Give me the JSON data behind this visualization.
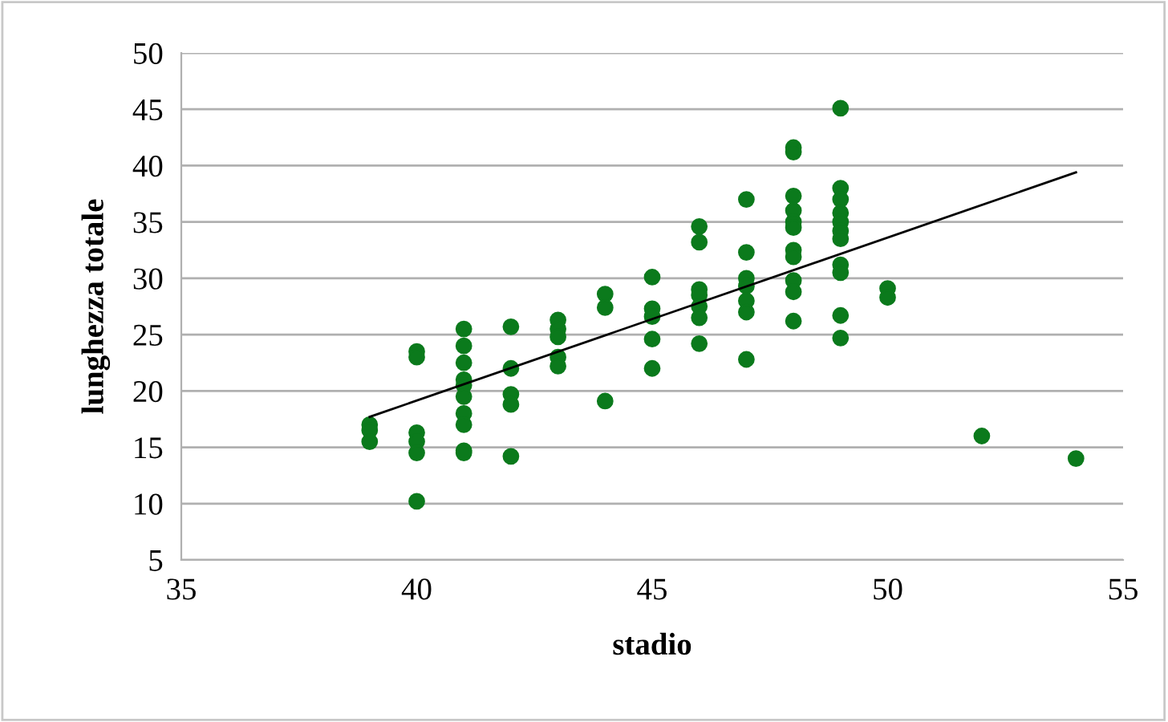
{
  "chart_data": {
    "type": "scatter",
    "xlabel": "stadio",
    "ylabel": "lunghezza totale",
    "xlim": [
      35,
      55
    ],
    "xticks": [
      35,
      40,
      45,
      50,
      55
    ],
    "ylim": [
      5,
      50
    ],
    "yticks": [
      5,
      10,
      15,
      20,
      25,
      30,
      35,
      40,
      45,
      50
    ],
    "grid": "y",
    "legend": false,
    "series": [
      {
        "color": "#0b7a1c",
        "marker": "circle",
        "x": [
          39,
          39,
          39,
          40,
          40,
          40,
          40,
          40,
          40,
          41,
          41,
          41,
          41,
          41,
          41,
          41,
          41,
          41,
          41,
          42,
          42,
          42,
          42,
          42,
          43,
          43,
          43,
          43,
          43,
          44,
          44,
          44,
          45,
          45,
          45,
          45,
          45,
          46,
          46,
          46,
          46,
          46,
          46,
          46,
          47,
          47,
          47,
          47,
          47,
          47,
          47,
          48,
          48,
          48,
          48,
          48,
          48,
          48,
          48,
          48,
          48,
          48,
          49,
          49,
          49,
          49,
          49,
          49,
          49,
          49,
          49,
          49,
          49,
          50,
          50,
          52,
          54
        ],
        "values": [
          17,
          16.5,
          15.5,
          23.5,
          23,
          16.3,
          15.5,
          14.5,
          10.2,
          25.5,
          24,
          22.5,
          21,
          20.5,
          19.5,
          18,
          17,
          14.7,
          14.5,
          25.7,
          22,
          19.7,
          18.8,
          14.2,
          26.3,
          25.5,
          24.8,
          23,
          22.2,
          28.6,
          27.4,
          19.1,
          30.1,
          27.3,
          26.6,
          24.6,
          22,
          34.6,
          33.2,
          29,
          28.5,
          27.5,
          26.5,
          24.2,
          37,
          32.3,
          30,
          29.3,
          28,
          27,
          22.8,
          41.6,
          41.2,
          37.3,
          36,
          35,
          34.5,
          32.5,
          31.9,
          29.8,
          28.8,
          26.2,
          45.1,
          38,
          37,
          35.8,
          35,
          34.2,
          33.5,
          31.2,
          30.5,
          26.7,
          24.7,
          29.1,
          28.3,
          16,
          14
        ]
      },
      {
        "type": "line",
        "color": "#000000",
        "x": [
          39,
          54
        ],
        "values": [
          17.7,
          39.4
        ]
      }
    ]
  }
}
